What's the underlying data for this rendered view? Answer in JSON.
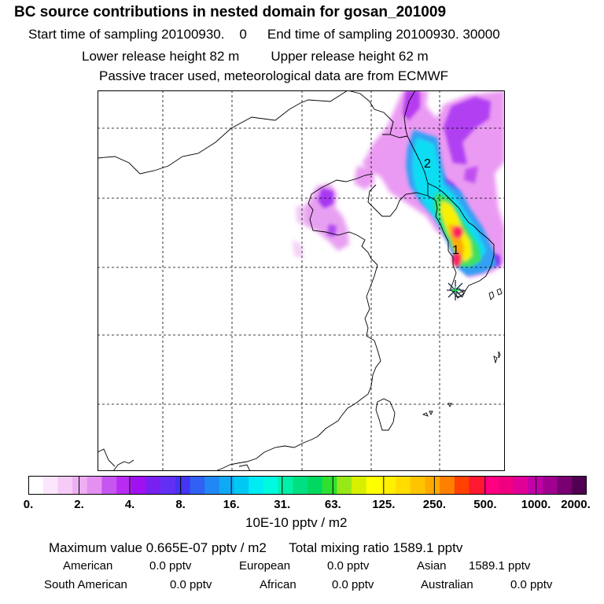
{
  "header": {
    "title": "BC  source contributions in nested domain for gosan_201009",
    "start_label": "Start time of sampling 20100930.",
    "start_hour": "0",
    "end_label": "End time of sampling 20100930. 30000",
    "lower_release": "Lower release height   82 m",
    "upper_release": "Upper release height   62 m",
    "tracer_note": "Passive tracer used, meteorological data are from ECMWF"
  },
  "map": {
    "markers": [
      {
        "label": "2"
      },
      {
        "label": "1"
      }
    ]
  },
  "colorbar": {
    "units": "10E-10 pptv / m2",
    "tick_labels": [
      "0.",
      "2.",
      "4.",
      "8.",
      "16.",
      "31.",
      "63.",
      "125.",
      "250.",
      "500.",
      "1000.",
      "2000."
    ],
    "colors": [
      "#ffffff",
      "#fbe6fb",
      "#f6ccf6",
      "#eeb0f2",
      "#e490f0",
      "#c656f0",
      "#b82cf2",
      "#a010f0",
      "#7820f0",
      "#6230f4",
      "#4434f4",
      "#3060f4",
      "#2088f4",
      "#10aaf4",
      "#00c8f4",
      "#00ecf4",
      "#00fae0",
      "#00f0a8",
      "#00e080",
      "#00d860",
      "#30e030",
      "#98e818",
      "#d8f000",
      "#ffff00",
      "#fff000",
      "#ffdd00",
      "#ffc400",
      "#ffaa00",
      "#ff8000",
      "#ff4000",
      "#ff1830",
      "#ff0080",
      "#f00080",
      "#e00098",
      "#c000a8",
      "#a00090",
      "#780070",
      "#500050"
    ]
  },
  "stats": {
    "max_value": "Maximum value  0.665E-07 pptv / m2",
    "total_mixing_ratio": "Total mixing ratio     1589.1 pptv",
    "american_label": "American",
    "american_value": "0.0 pptv",
    "european_label": "European",
    "european_value": "0.0 pptv",
    "asian_label": "Asian",
    "asian_value": "1589.1 pptv",
    "south_american_label": "South American",
    "south_american_value": "0.0 pptv",
    "african_label": "African",
    "african_value": "0.0 pptv",
    "australian_label": "Australian",
    "australian_value": "0.0 pptv"
  }
}
